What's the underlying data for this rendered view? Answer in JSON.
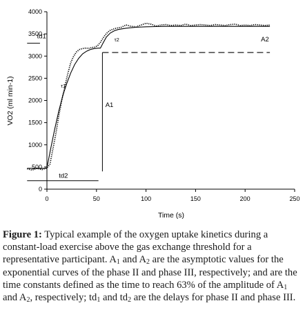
{
  "chart_data": {
    "type": "line",
    "xlabel": "Time (s)",
    "ylabel": "VO2 (ml min-1)",
    "xlim": [
      0,
      250
    ],
    "ylim": [
      0,
      4000
    ],
    "x_ticks": [
      0,
      50,
      100,
      150,
      200,
      250
    ],
    "y_ticks": [
      0,
      500,
      1000,
      1500,
      2000,
      2500,
      3000,
      3500,
      4000
    ],
    "grid": false,
    "legend": "none",
    "series": [
      {
        "style": "dotted",
        "x": [
          -20,
          -15,
          -10,
          -5,
          0,
          3,
          6,
          9,
          12,
          15,
          18,
          21,
          24,
          27,
          30,
          33,
          36,
          39,
          42,
          45,
          48,
          51,
          54,
          57,
          60,
          63,
          66,
          70,
          75,
          80,
          85,
          90,
          95,
          100,
          105,
          110,
          115,
          120,
          125,
          130,
          135,
          140,
          145,
          150,
          155,
          160,
          165,
          170,
          175,
          180,
          185,
          190,
          195,
          200,
          205,
          210,
          215,
          220,
          225
        ],
        "y": [
          460,
          430,
          470,
          440,
          480,
          560,
          900,
          1250,
          1650,
          2000,
          2300,
          2600,
          2850,
          3000,
          3100,
          3150,
          3170,
          3180,
          3175,
          3190,
          3200,
          3230,
          3310,
          3420,
          3510,
          3570,
          3600,
          3630,
          3650,
          3700,
          3670,
          3660,
          3700,
          3740,
          3720,
          3680,
          3700,
          3710,
          3690,
          3700,
          3690,
          3720,
          3690,
          3700,
          3710,
          3700,
          3690,
          3710,
          3700,
          3690,
          3710,
          3720,
          3690,
          3700,
          3690,
          3710,
          3700,
          3690,
          3700
        ]
      },
      {
        "style": "solid",
        "x": [
          -20,
          0,
          0,
          4,
          8,
          12,
          16,
          20,
          24,
          28,
          32,
          36,
          40,
          44,
          48,
          52,
          54,
          57,
          60,
          64,
          68,
          72,
          80,
          90,
          100,
          110,
          120,
          140,
          160,
          180,
          200,
          225
        ],
        "y": [
          470,
          470,
          480,
          930,
          1370,
          1760,
          2110,
          2380,
          2620,
          2810,
          2950,
          3050,
          3110,
          3150,
          3170,
          3180,
          3180,
          3310,
          3430,
          3520,
          3570,
          3600,
          3630,
          3650,
          3660,
          3665,
          3670,
          3670,
          3670,
          3670,
          3670,
          3670
        ]
      },
      {
        "style": "dashed",
        "x": [
          56,
          225
        ],
        "y": [
          3080,
          3080
        ]
      }
    ],
    "annotations": {
      "td1": "td1",
      "td2": "td2",
      "tau1": "τ1",
      "tau2": "τ2",
      "a1": "A1",
      "a2": "A2"
    }
  },
  "caption": {
    "label": "Figure 1:",
    "seg1": " Typical example of the oxygen uptake kinetics during a constant-load exercise above the gas exchange threshold for a representative participant. A",
    "sub1": "1",
    "seg2": " and A",
    "sub2": "2",
    "seg3": " are the asymptotic values for the exponential curves of the phase II and phase III, respectively; and are the time constants defined as the time to reach 63% of the amplitude of A",
    "sub3": "1",
    "seg4": " and A",
    "sub4": "2",
    "seg5": ", respectively; td",
    "sub5": "1",
    "seg6": " and td",
    "sub6": "2",
    "seg7": " are the delays for phase II and phase III."
  }
}
